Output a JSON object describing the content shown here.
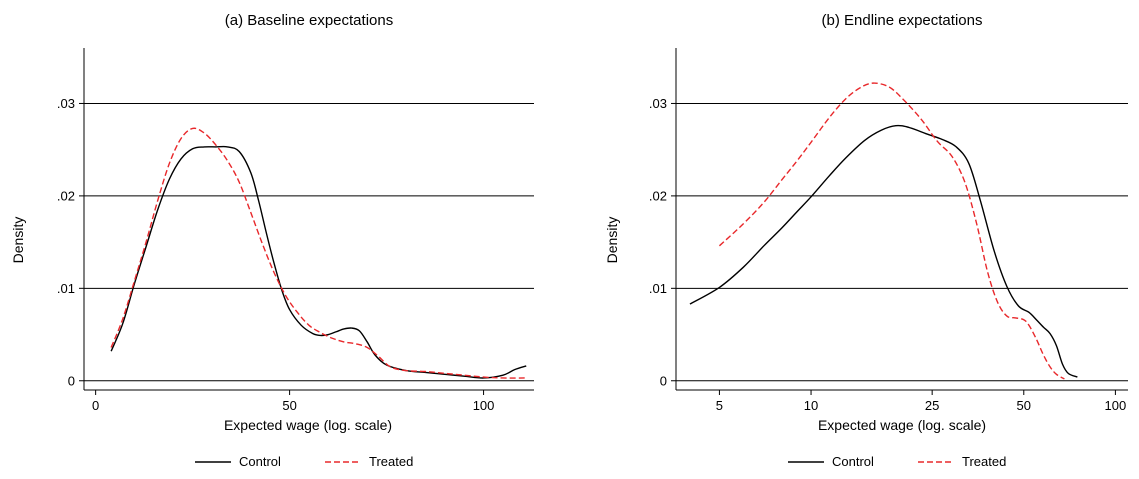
{
  "chart_data": [
    {
      "type": "line",
      "title": "(a) Baseline expectations",
      "xlabel": "Expected wage (log. scale)",
      "ylabel": "Density",
      "x_scale": "linear",
      "xlim": [
        -3,
        113
      ],
      "ylim": [
        -0.001,
        0.036
      ],
      "xticks": [
        0,
        50,
        100
      ],
      "xtick_labels": [
        "0",
        "50",
        "100"
      ],
      "yticks": [
        0,
        0.01,
        0.02,
        0.03
      ],
      "ytick_labels": [
        "0",
        ".01",
        ".02",
        ".03"
      ],
      "grid": "horizontal",
      "legend": {
        "position": "bottom"
      },
      "series": [
        {
          "name": "Control",
          "color": "#000000",
          "dash": "solid",
          "x": [
            4,
            7,
            10,
            13,
            16,
            19,
            22,
            25,
            28,
            31,
            34,
            37,
            40,
            42,
            44,
            46,
            48,
            50,
            53,
            56,
            58,
            60,
            62,
            64,
            66,
            68,
            70,
            72,
            75,
            80,
            85,
            90,
            95,
            100,
            105,
            108,
            111
          ],
          "y": [
            0.0032,
            0.0062,
            0.0105,
            0.0145,
            0.0185,
            0.0218,
            0.024,
            0.0251,
            0.0253,
            0.0253,
            0.0253,
            0.0248,
            0.0225,
            0.0195,
            0.016,
            0.0127,
            0.0098,
            0.0077,
            0.006,
            0.0051,
            0.0049,
            0.005,
            0.0053,
            0.0056,
            0.0057,
            0.0054,
            0.0042,
            0.0028,
            0.0017,
            0.0011,
            0.0009,
            0.0007,
            0.0005,
            0.0003,
            0.0006,
            0.0012,
            0.0016
          ]
        },
        {
          "name": "Treated",
          "color": "#e8282b",
          "dash": "dashed",
          "x": [
            4,
            7,
            10,
            13,
            16,
            19,
            22,
            25,
            28,
            31,
            34,
            37,
            40,
            43,
            46,
            49,
            52,
            55,
            58,
            61,
            64,
            67,
            70,
            73,
            76,
            80,
            85,
            90,
            95,
            100,
            105,
            111
          ],
          "y": [
            0.0036,
            0.0067,
            0.0108,
            0.015,
            0.0195,
            0.0235,
            0.0262,
            0.0273,
            0.0268,
            0.0255,
            0.0238,
            0.0215,
            0.0182,
            0.0148,
            0.0117,
            0.0092,
            0.0074,
            0.006,
            0.0052,
            0.0046,
            0.0042,
            0.004,
            0.0036,
            0.0026,
            0.0015,
            0.0011,
            0.001,
            0.0008,
            0.0006,
            0.0004,
            0.0003,
            0.0003
          ]
        }
      ]
    },
    {
      "type": "line",
      "title": "(b) Endline expectations",
      "xlabel": "Expected wage (log. scale)",
      "ylabel": "Density",
      "x_scale": "log",
      "xlim": [
        3.6,
        110
      ],
      "ylim": [
        -0.001,
        0.036
      ],
      "xticks": [
        5,
        10,
        25,
        50,
        100
      ],
      "xtick_labels": [
        "5",
        "10",
        "25",
        "50",
        "100"
      ],
      "yticks": [
        0,
        0.01,
        0.02,
        0.03
      ],
      "ytick_labels": [
        "0",
        ".01",
        ".02",
        ".03"
      ],
      "grid": "horizontal",
      "legend": {
        "position": "bottom"
      },
      "series": [
        {
          "name": "Control",
          "color": "#000000",
          "dash": "solid",
          "x": [
            4,
            5,
            6,
            7,
            8,
            9,
            10,
            11.5,
            13,
            15,
            17,
            19,
            21,
            24,
            27,
            30,
            33,
            36,
            40,
            44,
            48,
            52,
            55,
            58,
            61,
            64,
            67,
            70,
            75
          ],
          "y": [
            0.0083,
            0.0101,
            0.0123,
            0.0146,
            0.0165,
            0.0183,
            0.0199,
            0.0222,
            0.0241,
            0.026,
            0.0271,
            0.0276,
            0.0274,
            0.0267,
            0.0261,
            0.0253,
            0.0235,
            0.0195,
            0.014,
            0.0102,
            0.0081,
            0.0074,
            0.0066,
            0.0058,
            0.0051,
            0.0038,
            0.0018,
            0.0008,
            0.0004
          ]
        },
        {
          "name": "Treated",
          "color": "#e8282b",
          "dash": "dashed",
          "x": [
            5,
            6,
            7,
            8,
            9,
            10,
            11.5,
            13,
            14.5,
            16,
            18,
            20,
            23,
            26,
            29,
            32,
            35,
            38,
            41,
            44,
            47,
            50,
            52,
            55,
            58,
            61,
            64,
            68
          ],
          "y": [
            0.0146,
            0.017,
            0.0193,
            0.0217,
            0.0238,
            0.0258,
            0.0285,
            0.0305,
            0.0317,
            0.0322,
            0.0318,
            0.0305,
            0.0283,
            0.0259,
            0.0243,
            0.0215,
            0.017,
            0.0118,
            0.0085,
            0.007,
            0.0068,
            0.0066,
            0.006,
            0.0045,
            0.0028,
            0.0015,
            0.0007,
            0.0002
          ]
        }
      ]
    }
  ]
}
